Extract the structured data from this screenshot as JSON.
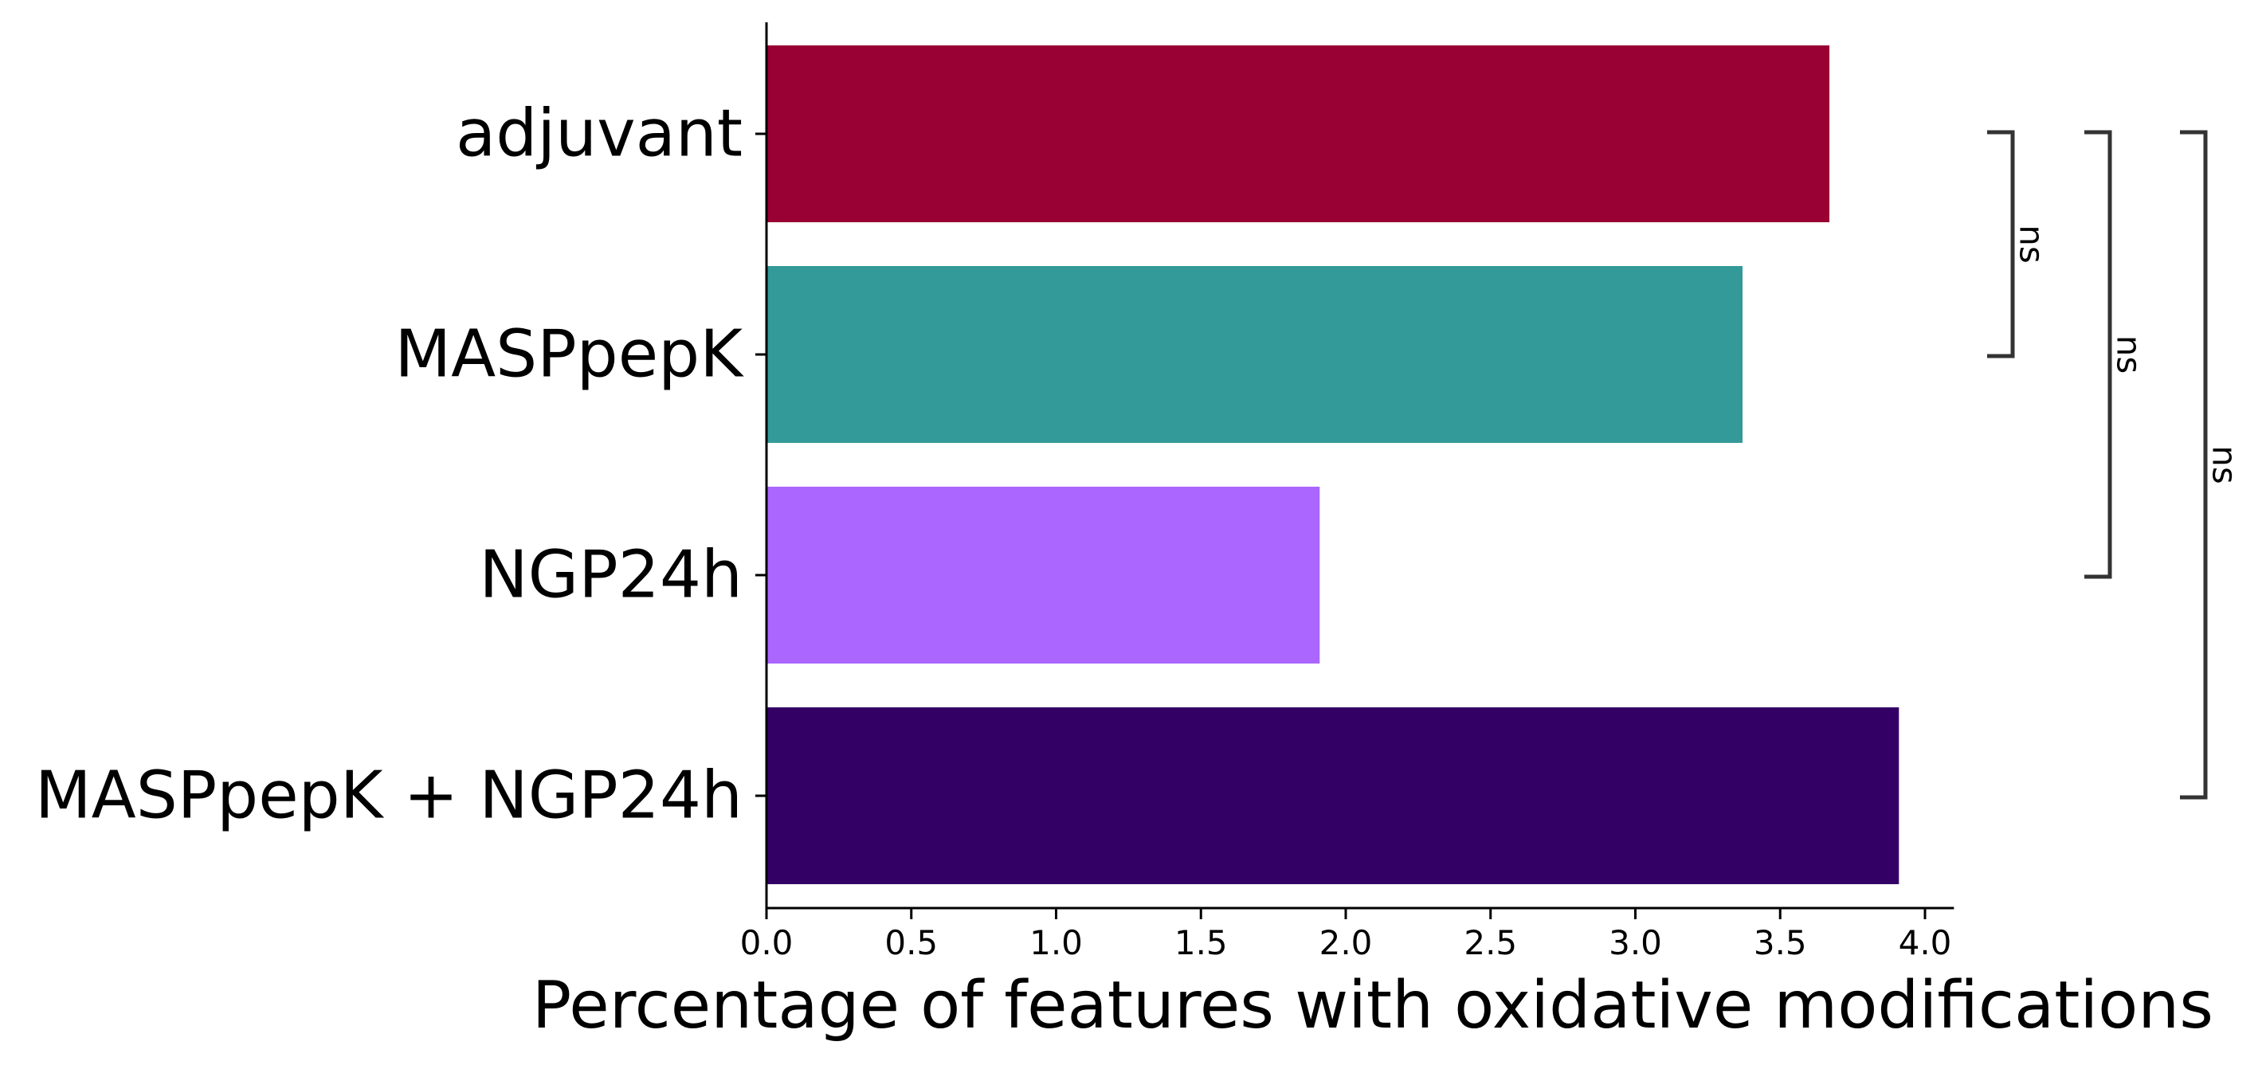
{
  "chart_data": {
    "type": "bar",
    "orientation": "horizontal",
    "categories": [
      "adjuvant",
      "MASPpepK",
      "NGP24h",
      "MASPpepK + NGP24h"
    ],
    "values": [
      3.67,
      3.37,
      1.91,
      3.91
    ],
    "colors": [
      "#990033",
      "#339999",
      "#aa66ff",
      "#330066"
    ],
    "title": "",
    "xlabel": "Percentage of features with oxidative modifications",
    "ylabel": "",
    "xlim": [
      0,
      4.1
    ],
    "xticks": [
      "0.0",
      "0.5",
      "1.0",
      "1.5",
      "2.0",
      "2.5",
      "3.0",
      "3.5",
      "4.0"
    ],
    "grid": false,
    "significance": [
      {
        "from": "adjuvant",
        "to": "MASPpepK",
        "label": "ns"
      },
      {
        "from": "adjuvant",
        "to": "NGP24h",
        "label": "ns"
      },
      {
        "from": "adjuvant",
        "to": "MASPpepK + NGP24h",
        "label": "ns"
      }
    ]
  }
}
